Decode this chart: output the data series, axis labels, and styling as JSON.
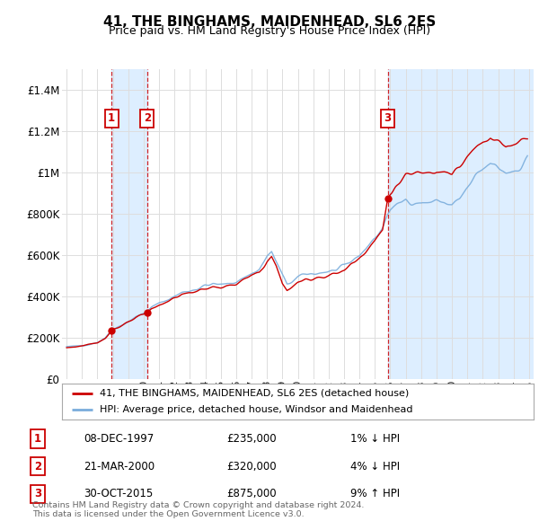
{
  "title": "41, THE BINGHAMS, MAIDENHEAD, SL6 2ES",
  "subtitle": "Price paid vs. HM Land Registry's House Price Index (HPI)",
  "ylim": [
    0,
    1500000
  ],
  "yticks": [
    0,
    200000,
    400000,
    600000,
    800000,
    1000000,
    1200000,
    1400000
  ],
  "ytick_labels": [
    "£0",
    "£200K",
    "£400K",
    "£600K",
    "£800K",
    "£1M",
    "£1.2M",
    "£1.4M"
  ],
  "x_start_year": 1995,
  "x_end_year": 2025,
  "sale_color": "#cc0000",
  "hpi_color": "#7aaddc",
  "shade_color": "#ddeeff",
  "sale_label": "41, THE BINGHAMS, MAIDENHEAD, SL6 2ES (detached house)",
  "hpi_label": "HPI: Average price, detached house, Windsor and Maidenhead",
  "transactions": [
    {
      "num": 1,
      "date": "08-DEC-1997",
      "year": 1997.92,
      "price": 235000,
      "pct": "1%",
      "dir": "↓"
    },
    {
      "num": 2,
      "date": "21-MAR-2000",
      "year": 2000.22,
      "price": 320000,
      "pct": "4%",
      "dir": "↓"
    },
    {
      "num": 3,
      "date": "30-OCT-2015",
      "year": 2015.83,
      "price": 875000,
      "pct": "9%",
      "dir": "↑"
    }
  ],
  "footer": "Contains HM Land Registry data © Crown copyright and database right 2024.\nThis data is licensed under the Open Government Licence v3.0.",
  "background_color": "#ffffff",
  "grid_color": "#dddddd",
  "border_color": "#aaaaaa"
}
